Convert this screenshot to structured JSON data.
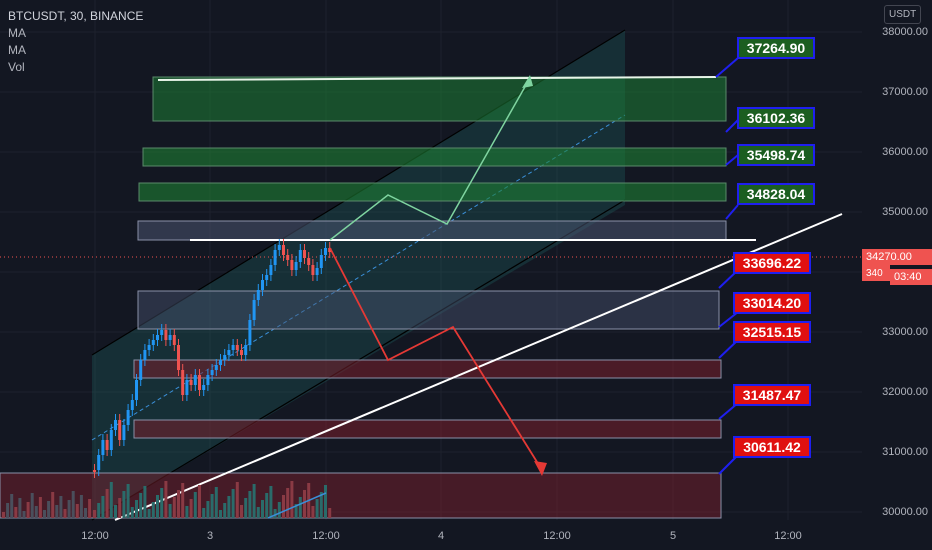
{
  "legend": {
    "symbol": "BTCUSDT, 30, BINANCE",
    "ind1": "MA",
    "ind2": "MA",
    "ind3": "Vol"
  },
  "currency_badge": "USDT",
  "price_ticks": [
    "38000.00",
    "37000.00",
    "36000.00",
    "35000.00",
    "34000.00",
    "33000.00",
    "32000.00",
    "31000.00",
    "30000.00"
  ],
  "time_ticks": [
    "12:00",
    "3",
    "12:00",
    "4",
    "12:00",
    "5",
    "12:00"
  ],
  "current_price": "34270.00",
  "countdown": "03:40",
  "current_price_partial": "340",
  "green_levels": [
    "37264.90",
    "36102.36",
    "35498.74",
    "34828.04"
  ],
  "red_levels": [
    "33696.22",
    "33014.20",
    "32515.15",
    "31487.47",
    "30611.42"
  ],
  "colors": {
    "background": "#131722",
    "up": "#2196f3",
    "down": "#ef5350",
    "tag_green": "#1b5e20",
    "tag_red": "#e01010",
    "tag_border": "#1f1ff0"
  },
  "chart_data": {
    "type": "candlestick",
    "symbol": "BTCUSDT",
    "interval": "30",
    "exchange": "BINANCE",
    "ylim": [
      29900,
      38100
    ],
    "targets_up": [
      34828.04,
      35498.74,
      36102.36,
      37264.9
    ],
    "targets_down": [
      33696.22,
      33014.2,
      32515.15,
      31487.47,
      30611.42
    ],
    "last_price": 34270.0
  }
}
